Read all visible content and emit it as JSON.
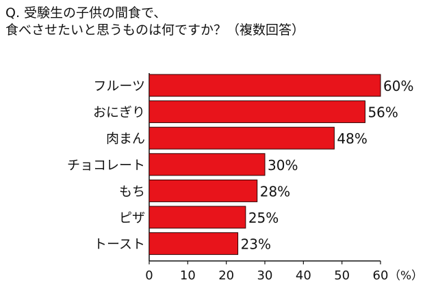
{
  "chart_data": {
    "type": "bar",
    "orientation": "horizontal",
    "title_lines": [
      "Q. 受験生の子供の間食で、",
      "食べさせたいと思うものは何ですか？（複数回答）"
    ],
    "categories": [
      "フルーツ",
      "おにぎり",
      "肉まん",
      "チョコレート",
      "もち",
      "ピザ",
      "トースト"
    ],
    "values": [
      60,
      56,
      48,
      30,
      28,
      25,
      23
    ],
    "value_labels": [
      "60%",
      "56%",
      "48%",
      "30%",
      "28%",
      "25%",
      "23%"
    ],
    "x_ticks": [
      "0",
      "10",
      "20",
      "30",
      "40",
      "50",
      "60"
    ],
    "x_unit": "（%）",
    "xlim": [
      0,
      60
    ],
    "bar_color": "#e8141b",
    "bar_outline": "#2a0000",
    "grid": false
  }
}
